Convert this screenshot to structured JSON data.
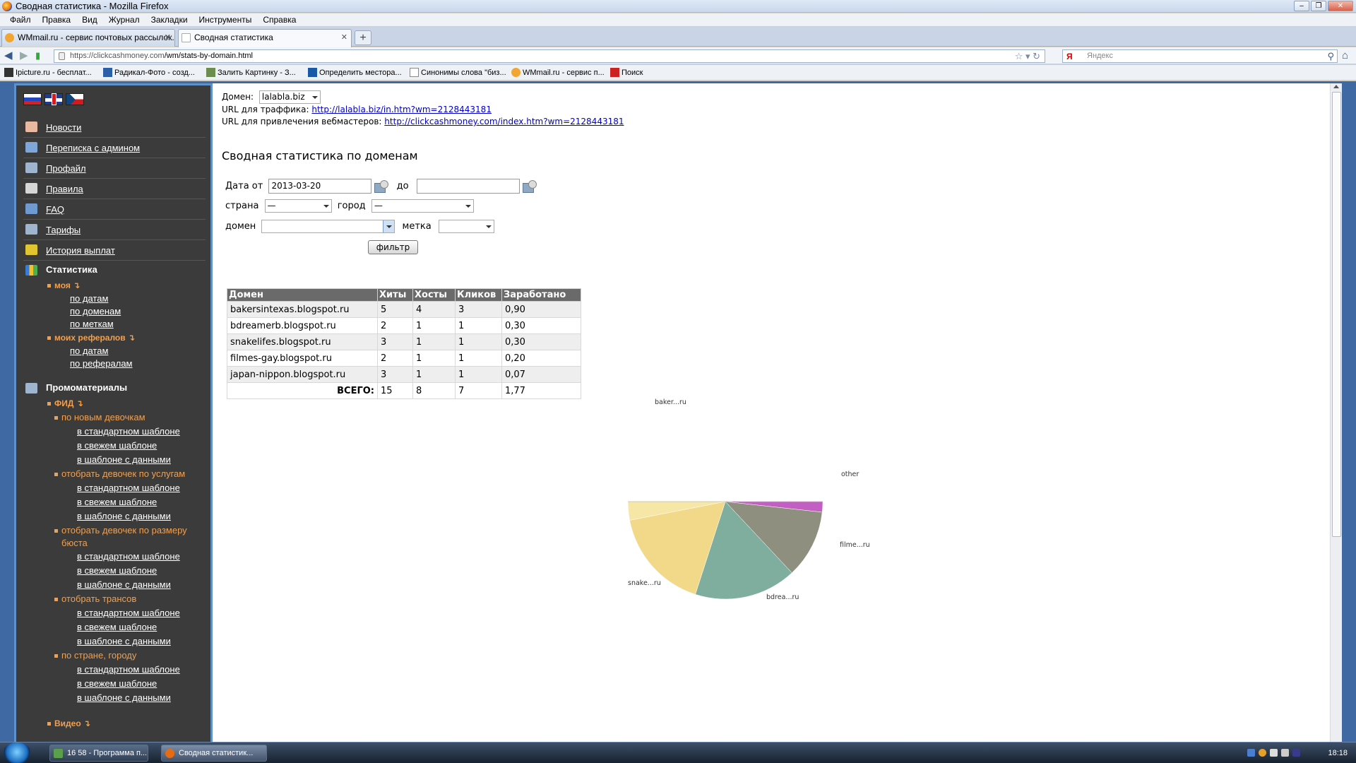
{
  "window": {
    "title": "Сводная статистика - Mozilla Firefox"
  },
  "menu": [
    "Файл",
    "Правка",
    "Вид",
    "Журнал",
    "Закладки",
    "Инструменты",
    "Справка"
  ],
  "tabs": [
    {
      "label": "WMmail.ru - сервис почтовых рассылок..."
    },
    {
      "label": "Сводная статистика"
    }
  ],
  "nav": {
    "url_host": "https://clickcashmoney.com",
    "url_path": "/wm/stats-by-domain.html",
    "search_placeholder": "Яндекс"
  },
  "bookmarks": [
    "Ipicture.ru - бесплат...",
    "Радикал-Фото - созд...",
    "Залить Картинку - З...",
    "Определить местора...",
    "Синонимы слова \"биз...",
    "WMmail.ru - сервис п...",
    "Поиск"
  ],
  "sidebar": {
    "items": [
      "Новости",
      "Переписка с админом",
      "Профайл",
      "Правила",
      "FAQ",
      "Тарифы",
      "История выплат"
    ],
    "stats": {
      "label": "Статистика",
      "my": {
        "label": "моя ↴",
        "links": [
          "по датам",
          "по доменам",
          "по меткам"
        ]
      },
      "refs": {
        "label": "моих рефералов ↴",
        "links": [
          "по датам",
          "по рефералам"
        ]
      }
    },
    "promo": {
      "label": "Промоматериалы",
      "feed": "ФИД ↴",
      "groups": [
        {
          "label": "по новым девочкам",
          "links": [
            "в стандартном шаблоне",
            "в свежем шаблоне",
            "в шаблоне с данными"
          ]
        },
        {
          "label": "отобрать девочек по услугам",
          "links": [
            "в стандартном шаблоне",
            "в свежем шаблоне",
            "в шаблоне с данными"
          ]
        },
        {
          "label": "отобрать девочек по размеру бюста",
          "links": [
            "в стандартном шаблоне",
            "в свежем шаблоне",
            "в шаблоне с данными"
          ]
        },
        {
          "label": "отобрать трансов",
          "links": [
            "в стандартном шаблоне",
            "в свежем шаблоне",
            "в шаблоне с данными"
          ]
        },
        {
          "label": "по стране, городу",
          "links": [
            "в стандартном шаблоне",
            "в свежем шаблоне",
            "в шаблоне с данными"
          ]
        }
      ],
      "video": "Видео ↴"
    }
  },
  "main": {
    "domain_label": "Домен:",
    "domain_value": "lalabla.biz",
    "traffic_label": "URL для траффика:",
    "traffic_url": "http://lalabla.biz/in.htm?wm=2128443181",
    "webmaster_label": "URL для привлечения вебмастеров:",
    "webmaster_url": "http://clickcashmoney.com/index.htm?wm=2128443181",
    "heading": "Сводная статистика по доменам",
    "filter": {
      "date_from_label": "Дата от",
      "date_from": "2013-03-20",
      "date_to_label": "до",
      "date_to": "",
      "country_label": "страна",
      "country_value": "—",
      "city_label": "город",
      "city_value": "—",
      "domain_label": "домен",
      "domain_value": "",
      "tag_label": "метка",
      "tag_value": "",
      "button": "фильтр"
    },
    "table": {
      "headers": [
        "Домен",
        "Хиты",
        "Хосты",
        "Кликов",
        "Заработано"
      ],
      "rows": [
        [
          "bakersintexas.blogspot.ru",
          "5",
          "4",
          "3",
          "0,90"
        ],
        [
          "bdreamerb.blogspot.ru",
          "2",
          "1",
          "1",
          "0,30"
        ],
        [
          "snakelifes.blogspot.ru",
          "3",
          "1",
          "1",
          "0,30"
        ],
        [
          "filmes-gay.blogspot.ru",
          "2",
          "1",
          "1",
          "0,20"
        ],
        [
          "japan-nippon.blogspot.ru",
          "3",
          "1",
          "1",
          "0,07"
        ]
      ],
      "total_label": "ВСЕГО:",
      "total": [
        "15",
        "8",
        "7",
        "1,77"
      ]
    }
  },
  "chart_data": {
    "type": "pie",
    "labels": [
      "baker...ru",
      "other",
      "filme...ru",
      "bdrea...ru",
      "snake...ru"
    ],
    "values": [
      0.9,
      0.07,
      0.2,
      0.3,
      0.3
    ],
    "colors": [
      "#f6e7a6",
      "#c35fc3",
      "#8f8f80",
      "#7fae9e",
      "#f2d98a"
    ]
  },
  "taskbar": {
    "tasks": [
      "16 58 - Программа п...",
      "Сводная статистик..."
    ],
    "clock": "18:18"
  }
}
